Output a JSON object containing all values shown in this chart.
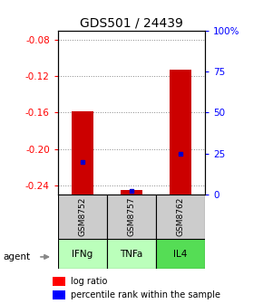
{
  "title": "GDS501 / 24439",
  "samples": [
    "GSM8752",
    "GSM8757",
    "GSM8762"
  ],
  "agents": [
    "IFNg",
    "TNFa",
    "IL4"
  ],
  "log_ratios": [
    -0.159,
    -0.245,
    -0.113
  ],
  "percentile_ranks": [
    0.2,
    0.02,
    0.25
  ],
  "ylim_left": [
    -0.25,
    -0.07
  ],
  "yticks_left": [
    -0.24,
    -0.2,
    -0.16,
    -0.12,
    -0.08
  ],
  "yticks_right_pct": [
    0,
    25,
    50,
    75,
    100
  ],
  "ytick_labels_left": [
    "-0.24",
    "-0.20",
    "-0.16",
    "-0.12",
    "-0.08"
  ],
  "ytick_labels_right": [
    "0",
    "25",
    "50",
    "75",
    "100%"
  ],
  "bar_color": "#cc0000",
  "marker_color": "#0000cc",
  "grid_color": "#888888",
  "sample_box_color": "#cccccc",
  "agent_colors": [
    "#bbffbb",
    "#bbffbb",
    "#55dd55"
  ],
  "bar_width": 0.45,
  "title_fontsize": 10,
  "tick_fontsize": 7.5,
  "legend_fontsize": 7
}
